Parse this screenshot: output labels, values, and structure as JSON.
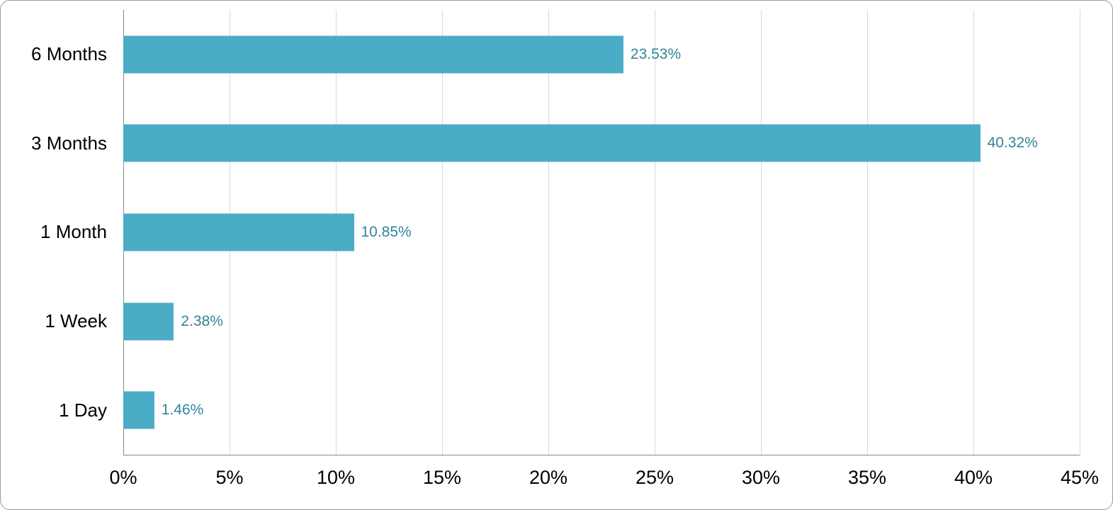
{
  "chart_data": {
    "type": "bar",
    "orientation": "horizontal",
    "title": "",
    "xlabel": "",
    "ylabel": "",
    "categories": [
      "6 Months",
      "3 Months",
      "1 Month",
      "1 Week",
      "1 Day"
    ],
    "values": [
      23.53,
      40.32,
      10.85,
      2.38,
      1.46
    ],
    "data_labels": [
      "23.53%",
      "40.32%",
      "10.85%",
      "2.38%",
      "1.46%"
    ],
    "xlim": [
      0,
      45
    ],
    "x_tick_step": 5,
    "x_tick_labels": [
      "0%",
      "5%",
      "10%",
      "15%",
      "20%",
      "25%",
      "30%",
      "35%",
      "40%",
      "45%"
    ],
    "grid": "vertical-gridlines-on",
    "legend": "none",
    "colors": {
      "bar_fill": "#4BACC6",
      "data_label_text": "#31859C",
      "gridline": "#D9D9D9",
      "axis_line": "#898989",
      "category_text": "#000000",
      "tick_text": "#000000",
      "background": "#FFFFFF",
      "card_border": "#999999"
    }
  }
}
